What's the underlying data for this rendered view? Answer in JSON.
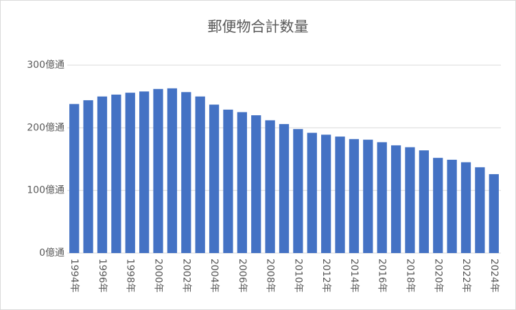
{
  "chart_data": {
    "type": "bar",
    "title": "郵便物合計数量",
    "categories": [
      "1994年",
      null,
      "1996年",
      null,
      "1998年",
      null,
      "2000年",
      null,
      "2002年",
      null,
      "2004年",
      null,
      "2006年",
      null,
      "2008年",
      null,
      "2010年",
      null,
      "2012年",
      null,
      "2014年",
      null,
      "2016年",
      null,
      "2018年",
      null,
      "2020年",
      null,
      "2022年",
      null,
      "2024年"
    ],
    "values": [
      238,
      244,
      250,
      253,
      256,
      258,
      262,
      263,
      257,
      250,
      237,
      229,
      225,
      220,
      212,
      206,
      198,
      192,
      189,
      186,
      182,
      181,
      177,
      172,
      169,
      164,
      152,
      149,
      145,
      137,
      126
    ],
    "color": "#4472c4",
    "ylim": [
      0,
      300
    ],
    "yticks": [
      {
        "value": 0,
        "label": "0億通"
      },
      {
        "value": 100,
        "label": "100億通"
      },
      {
        "value": 200,
        "label": "200億通"
      },
      {
        "value": 300,
        "label": "300億通"
      }
    ],
    "grid": true
  }
}
